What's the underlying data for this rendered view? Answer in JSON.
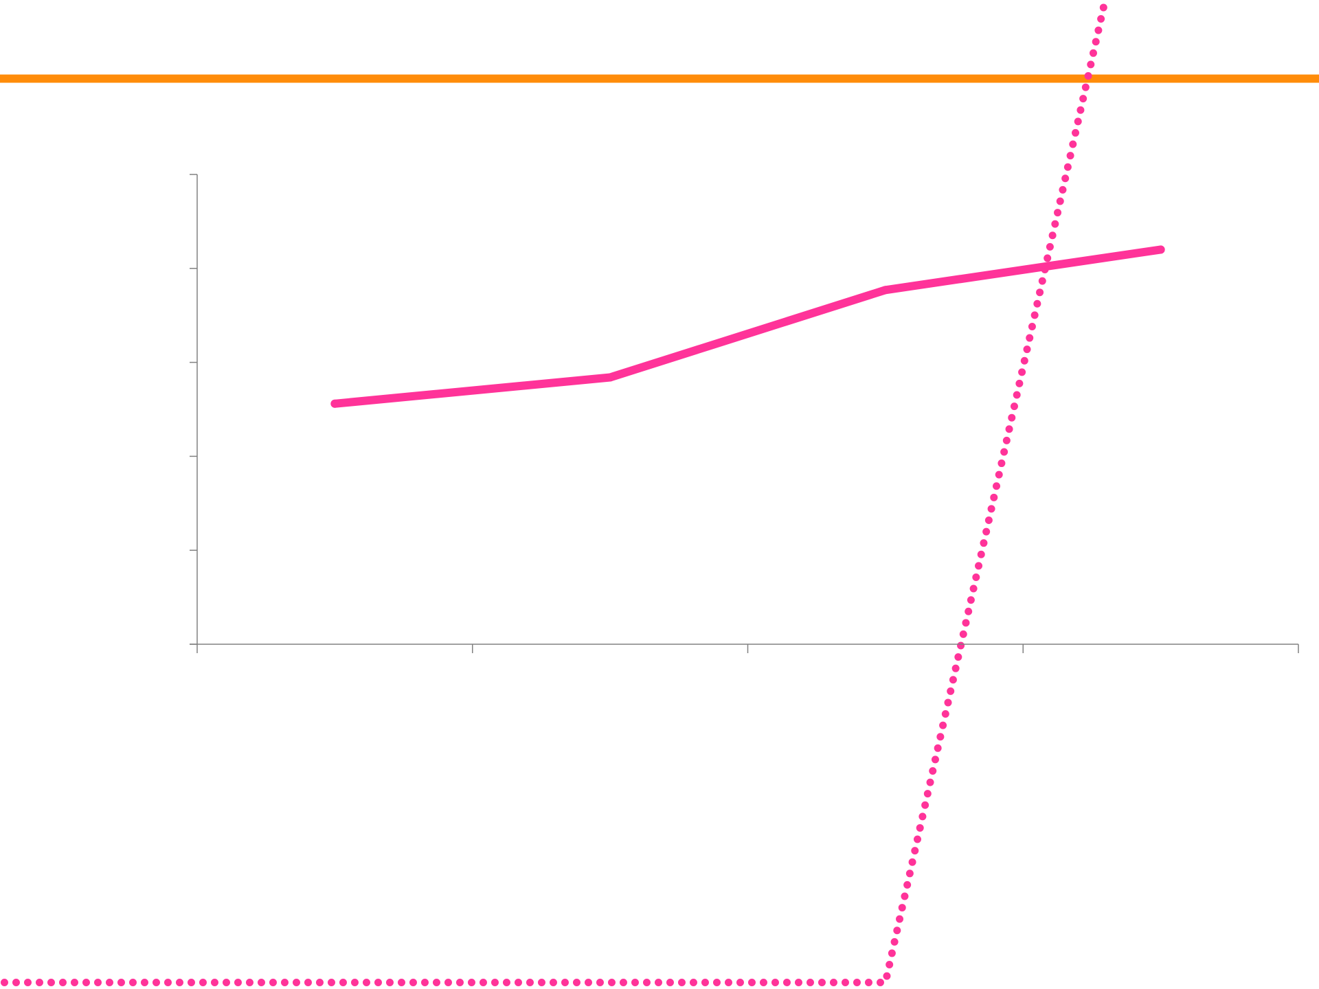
{
  "chart_data": {
    "type": "line",
    "title": "",
    "xlabel": "",
    "ylabel": "",
    "grid": false,
    "legend": "none",
    "xlim": [
      0,
      4
    ],
    "ylim": [
      0,
      5
    ],
    "x_ticks": [
      0,
      1,
      2,
      3,
      4
    ],
    "y_ticks": [
      0,
      1,
      2,
      3,
      4,
      5
    ],
    "series": [
      {
        "style": "solid",
        "color": "#ff3399",
        "x": [
          0.5,
          1.5,
          2.5,
          3.5
        ],
        "y": [
          2.56,
          2.84,
          3.77,
          4.2
        ]
      }
    ],
    "overlays": [
      {
        "kind": "horizontal-line",
        "style": "solid",
        "color": "#ff8c0a",
        "y": 6.02
      },
      {
        "kind": "dotted-line",
        "style": "dotted",
        "color": "#ff3399",
        "x": [
          -0.7,
          2.5,
          3.3
        ],
        "y": [
          -3.6,
          -3.6,
          6.88
        ]
      }
    ]
  }
}
